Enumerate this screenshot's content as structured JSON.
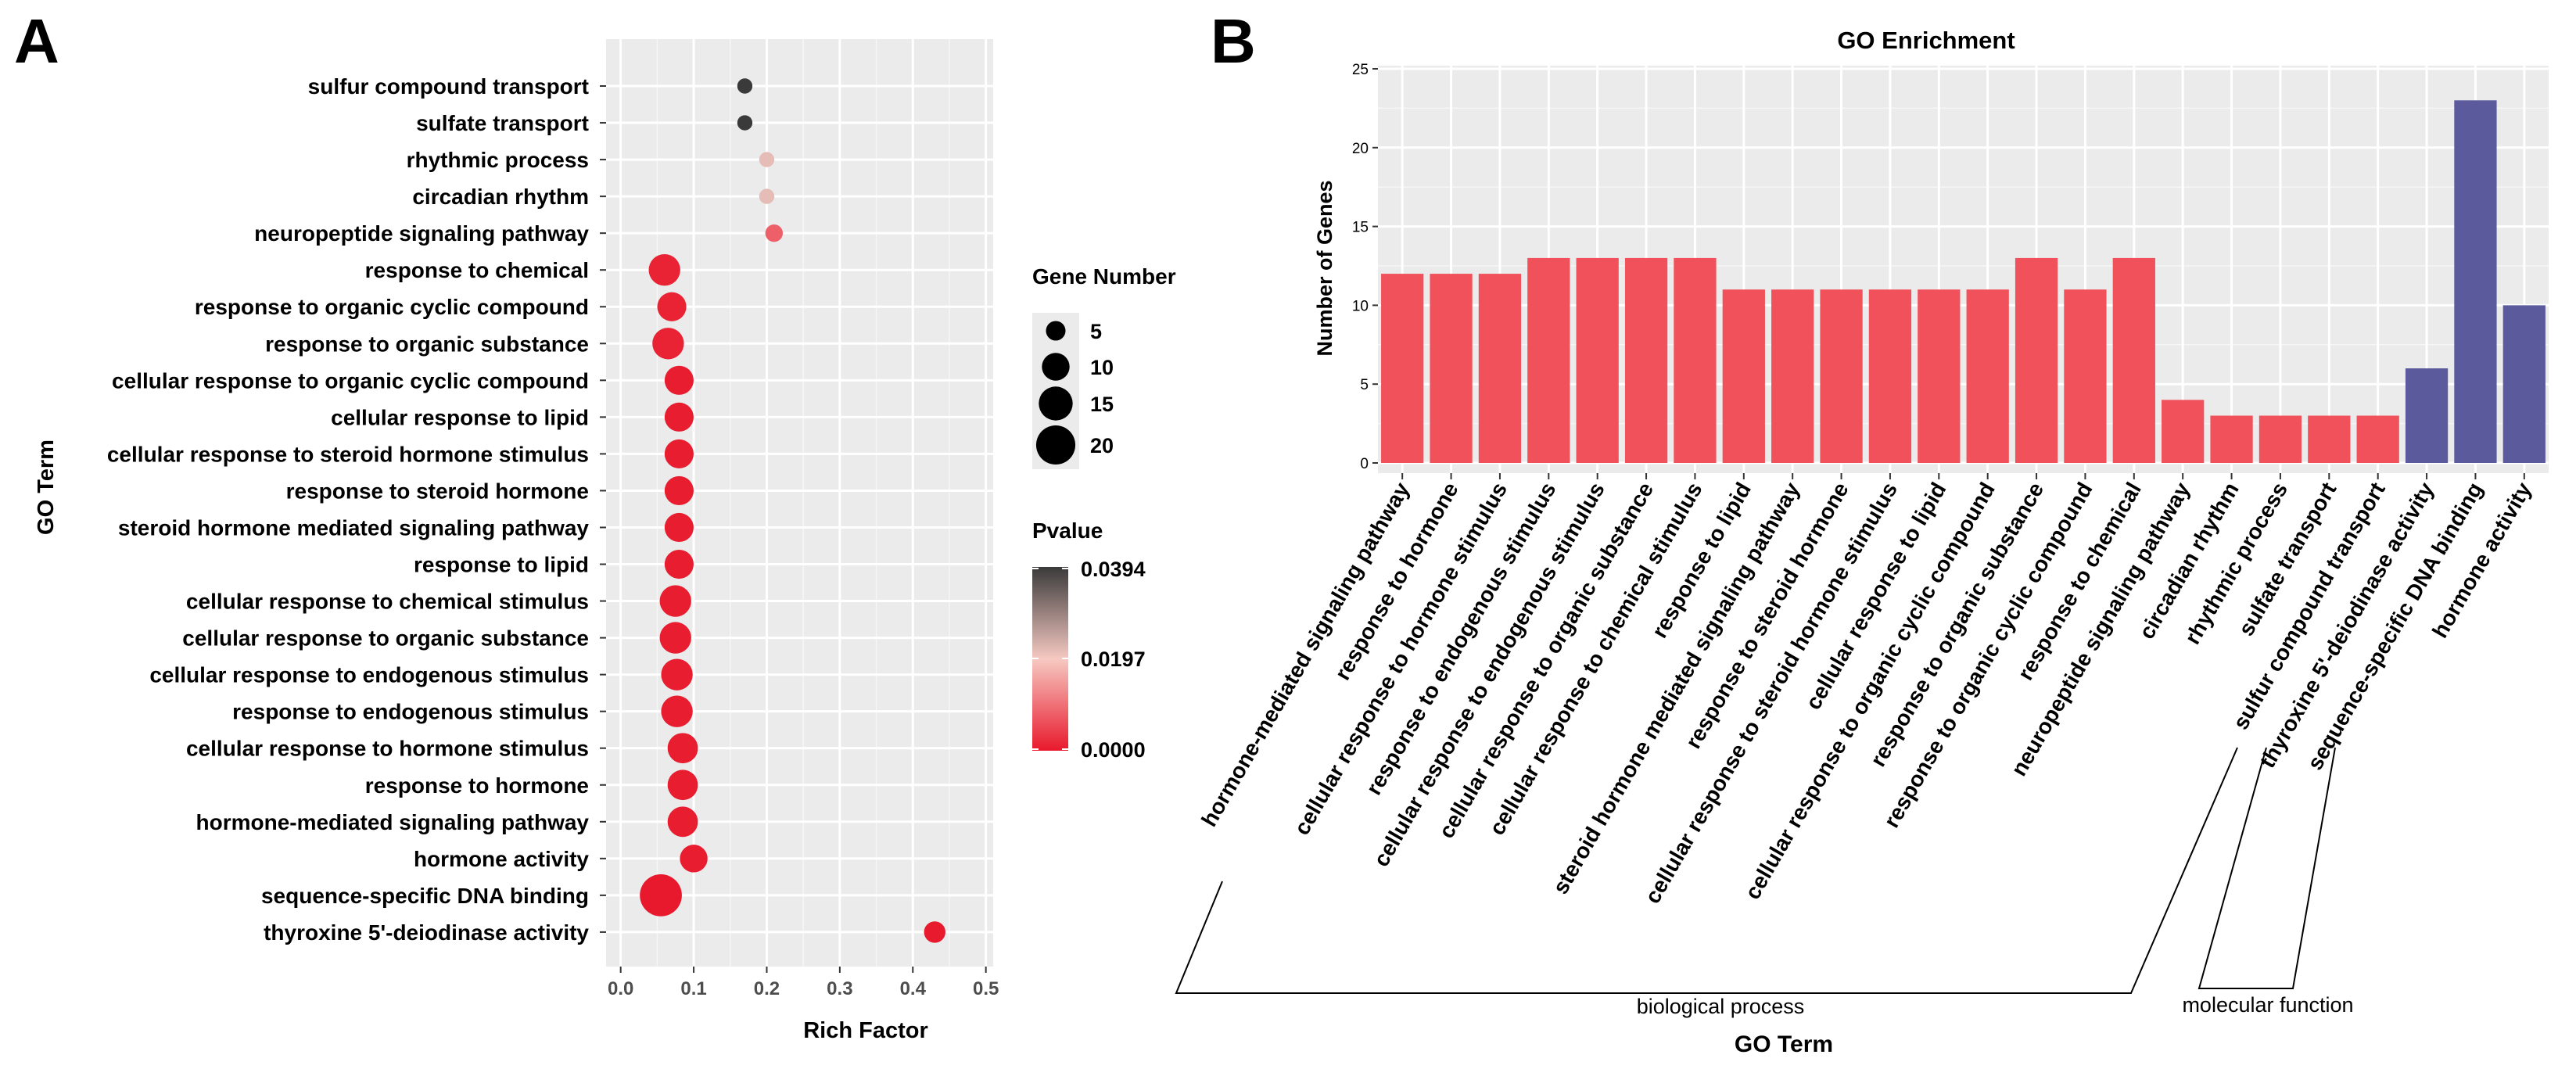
{
  "panel_a": {
    "letter": "A",
    "chart_data": {
      "type": "scatter",
      "subtype": "bubble",
      "xlabel": "Rich Factor",
      "ylabel": "GO Term",
      "xlim": [
        -0.02,
        0.51
      ],
      "xticks": [
        "0.0",
        "0.1",
        "0.2",
        "0.3",
        "0.4",
        "0.5"
      ],
      "xtick_values": [
        0.0,
        0.1,
        0.2,
        0.3,
        0.4,
        0.5
      ],
      "grid": true,
      "points": [
        {
          "term": "sulfur compound transport",
          "rich_factor": 0.17,
          "gene_number": 3,
          "pvalue": 0.0394
        },
        {
          "term": "sulfate transport",
          "rich_factor": 0.17,
          "gene_number": 3,
          "pvalue": 0.0394
        },
        {
          "term": "rhythmic process",
          "rich_factor": 0.2,
          "gene_number": 3,
          "pvalue": 0.0215
        },
        {
          "term": "circadian rhythm",
          "rich_factor": 0.2,
          "gene_number": 3,
          "pvalue": 0.0215
        },
        {
          "term": "neuropeptide signaling pathway",
          "rich_factor": 0.21,
          "gene_number": 4,
          "pvalue": 0.008
        },
        {
          "term": "response to chemical",
          "rich_factor": 0.06,
          "gene_number": 13,
          "pvalue": 0.001
        },
        {
          "term": "response to organic cyclic compound",
          "rich_factor": 0.07,
          "gene_number": 11,
          "pvalue": 0.001
        },
        {
          "term": "response to organic substance",
          "rich_factor": 0.065,
          "gene_number": 13,
          "pvalue": 0.001
        },
        {
          "term": "cellular response to organic cyclic compound",
          "rich_factor": 0.08,
          "gene_number": 11,
          "pvalue": 0.0005
        },
        {
          "term": "cellular response to lipid",
          "rich_factor": 0.08,
          "gene_number": 11,
          "pvalue": 0.0005
        },
        {
          "term": "cellular response to steroid hormone stimulus",
          "rich_factor": 0.08,
          "gene_number": 11,
          "pvalue": 0.0005
        },
        {
          "term": "response to steroid hormone",
          "rich_factor": 0.08,
          "gene_number": 11,
          "pvalue": 0.0005
        },
        {
          "term": "steroid hormone mediated signaling pathway",
          "rich_factor": 0.08,
          "gene_number": 11,
          "pvalue": 0.0005
        },
        {
          "term": "response to lipid",
          "rich_factor": 0.08,
          "gene_number": 11,
          "pvalue": 0.0005
        },
        {
          "term": "cellular response to chemical stimulus",
          "rich_factor": 0.075,
          "gene_number": 13,
          "pvalue": 0.0005
        },
        {
          "term": "cellular response to organic substance",
          "rich_factor": 0.075,
          "gene_number": 13,
          "pvalue": 0.0005
        },
        {
          "term": "cellular response to endogenous stimulus",
          "rich_factor": 0.077,
          "gene_number": 13,
          "pvalue": 0.0005
        },
        {
          "term": "response to endogenous stimulus",
          "rich_factor": 0.077,
          "gene_number": 13,
          "pvalue": 0.0005
        },
        {
          "term": "cellular response to hormone stimulus",
          "rich_factor": 0.085,
          "gene_number": 12,
          "pvalue": 0.0005
        },
        {
          "term": "response to hormone",
          "rich_factor": 0.085,
          "gene_number": 12,
          "pvalue": 0.0005
        },
        {
          "term": "hormone-mediated signaling pathway",
          "rich_factor": 0.085,
          "gene_number": 12,
          "pvalue": 0.0005
        },
        {
          "term": "hormone activity",
          "rich_factor": 0.1,
          "gene_number": 10,
          "pvalue": 0.0005
        },
        {
          "term": "sequence-specific DNA binding",
          "rich_factor": 0.055,
          "gene_number": 23,
          "pvalue": 0.0
        },
        {
          "term": "thyroxine 5'-deiodinase activity",
          "rich_factor": 0.43,
          "gene_number": 6,
          "pvalue": 0.0002
        }
      ],
      "size_legend": {
        "title": "Gene Number",
        "items": [
          {
            "label": "5",
            "value": 5
          },
          {
            "label": "10",
            "value": 10
          },
          {
            "label": "15",
            "value": 15
          },
          {
            "label": "20",
            "value": 20
          }
        ]
      },
      "color_legend": {
        "title": "Pvalue",
        "max_label": "0.0394",
        "mid_label": "0.0197",
        "min_label": "0.0000",
        "max": 0.0394,
        "min": 0.0,
        "color_low": "#e8192c",
        "color_mid": "#f6c9c2",
        "color_high": "#3a3a3a"
      }
    }
  },
  "panel_b": {
    "letter": "B",
    "chart_data": {
      "type": "bar",
      "title": "GO Enrichment",
      "xlabel": "GO Term",
      "ylabel": "Number of Genes",
      "ylim": [
        0,
        25
      ],
      "yticks": [
        "0",
        "5",
        "10",
        "15",
        "20",
        "25"
      ],
      "ytick_values": [
        0,
        5,
        10,
        15,
        20,
        25
      ],
      "grid": true,
      "categories": [
        "hormone-mediated signaling pathway",
        "response to hormone",
        "cellular response to hormone stimulus",
        "response to endogenous stimulus",
        "cellular response to endogenous stimulus",
        "cellular response to organic substance",
        "cellular response to chemical stimulus",
        "response to lipid",
        "steroid hormone mediated signaling pathway",
        "response to steroid hormone",
        "cellular response to steroid hormone stimulus",
        "cellular response to lipid",
        "cellular response to organic cyclic compound",
        "response to organic substance",
        "response to organic cyclic compound",
        "response to chemical",
        "neuropeptide signaling pathway",
        "circadian rhythm",
        "rhythmic process",
        "sulfate transport",
        "sulfur compound transport",
        "thyroxine 5'-deiodinase activity",
        "sequence-specific DNA binding",
        "hormone activity"
      ],
      "values": [
        12,
        12,
        12,
        13,
        13,
        13,
        13,
        11,
        11,
        11,
        11,
        11,
        11,
        13,
        11,
        13,
        4,
        3,
        3,
        3,
        3,
        6,
        23,
        10
      ],
      "groups": [
        {
          "name": "biological process",
          "count": 21,
          "color": "#f0515a"
        },
        {
          "name": "molecular function",
          "count": 3,
          "color": "#5b5a9c"
        }
      ]
    }
  }
}
